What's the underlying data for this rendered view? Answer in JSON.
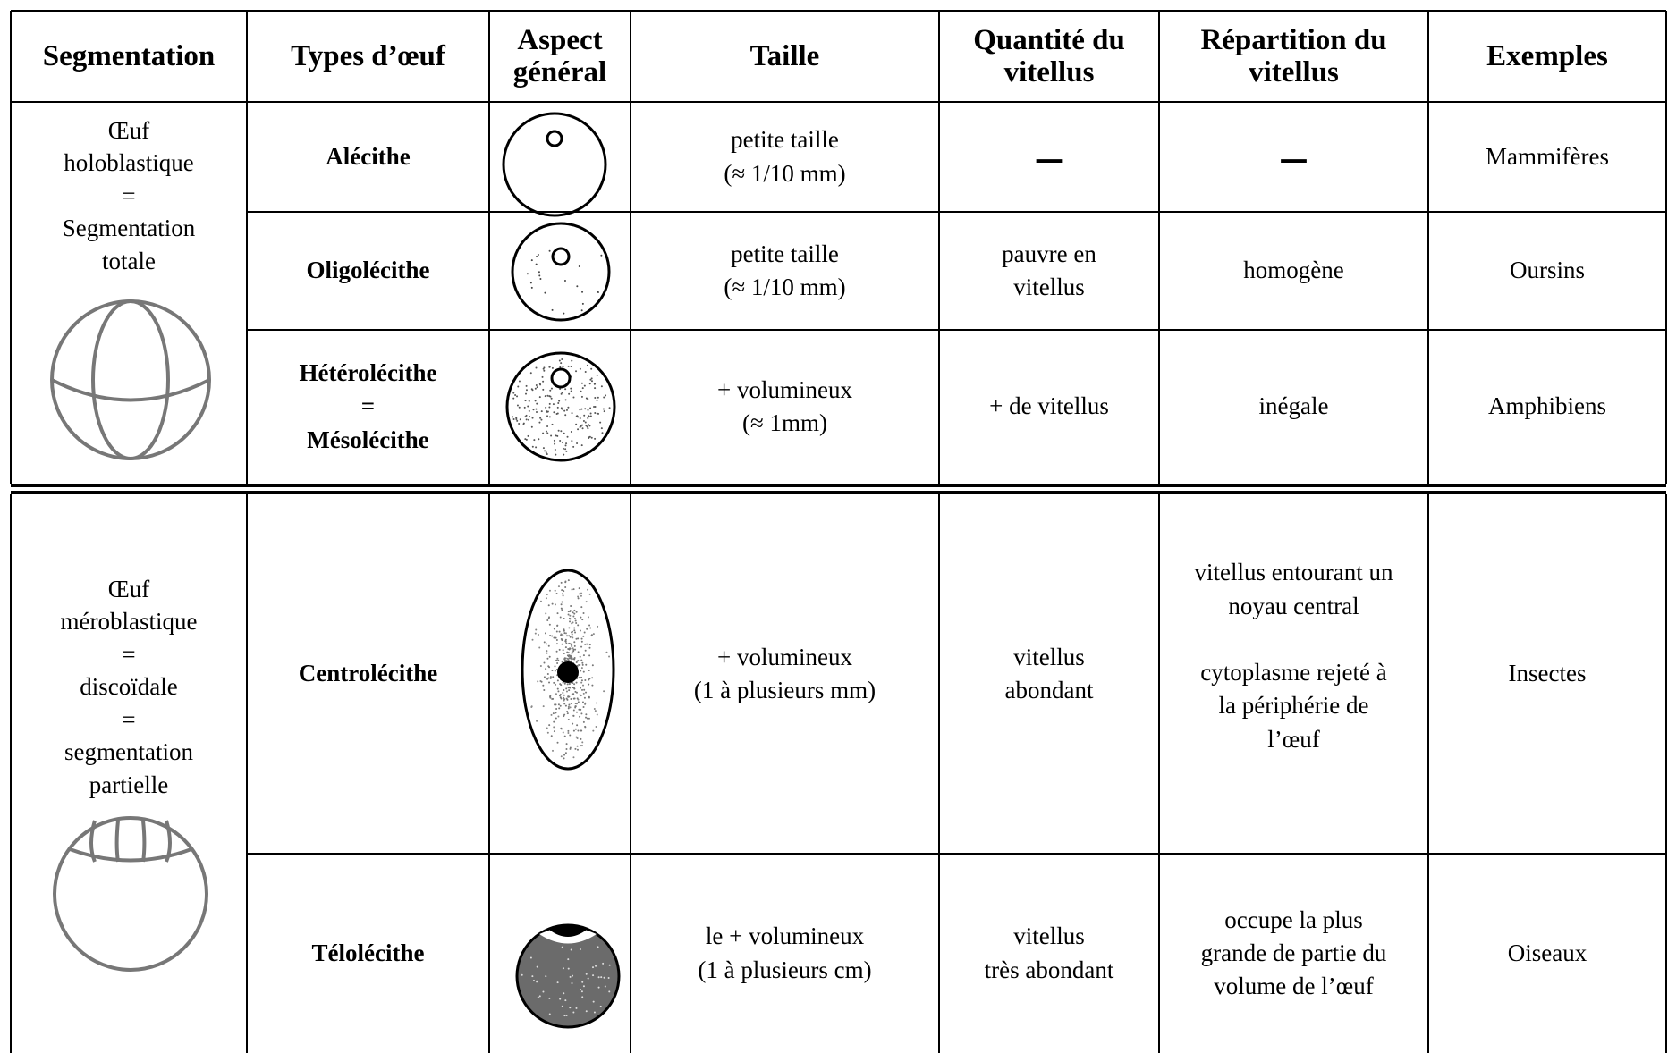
{
  "table": {
    "headers": [
      "Segmentation",
      "Types d’œuf",
      "Aspect\ngénéral",
      "Taille",
      "Quantité du\nvitellus",
      "Répartition du\nvitellus",
      "Exemples"
    ],
    "groups": [
      {
        "segmentation": "Œuf\nholoblastique\n=\nSegmentation\ntotale",
        "rows": [
          {
            "type": "Alécithe",
            "taille": "petite taille\n(≈ 1/10 mm)",
            "quantite": "–",
            "repartition": "–",
            "exemples": "Mammifères"
          },
          {
            "type": "Oligolécithe",
            "taille": "petite taille\n(≈ 1/10 mm)",
            "quantite": "pauvre en\nvitellus",
            "repartition": "homogène",
            "exemples": "Oursins"
          },
          {
            "type": "Hétérolécithe\n=\nMésolécithe",
            "taille": "+ volumineux\n(≈ 1mm)",
            "quantite": "+ de vitellus",
            "repartition": "inégale",
            "exemples": "Amphibiens"
          }
        ]
      },
      {
        "segmentation": "Œuf\nméroblastique\n=\ndiscoïdale\n=\nsegmentation\npartielle",
        "rows": [
          {
            "type": "Centrolécithe",
            "taille": "+ volumineux\n(1 à plusieurs mm)",
            "quantite": "vitellus\nabondant",
            "repartition": "vitellus entourant un\nnoyau central\n\ncytoplasme rejeté à\nla périphérie de\nl’œuf",
            "exemples": "Insectes"
          },
          {
            "type": "Télolécithe",
            "taille": "le + volumineux\n(1 à plusieurs cm)",
            "quantite": "vitellus\ntrès abondant",
            "repartition": "occupe la plus\ngrande de partie du\nvolume de l’œuf",
            "exemples": "Oiseaux"
          }
        ]
      }
    ]
  }
}
